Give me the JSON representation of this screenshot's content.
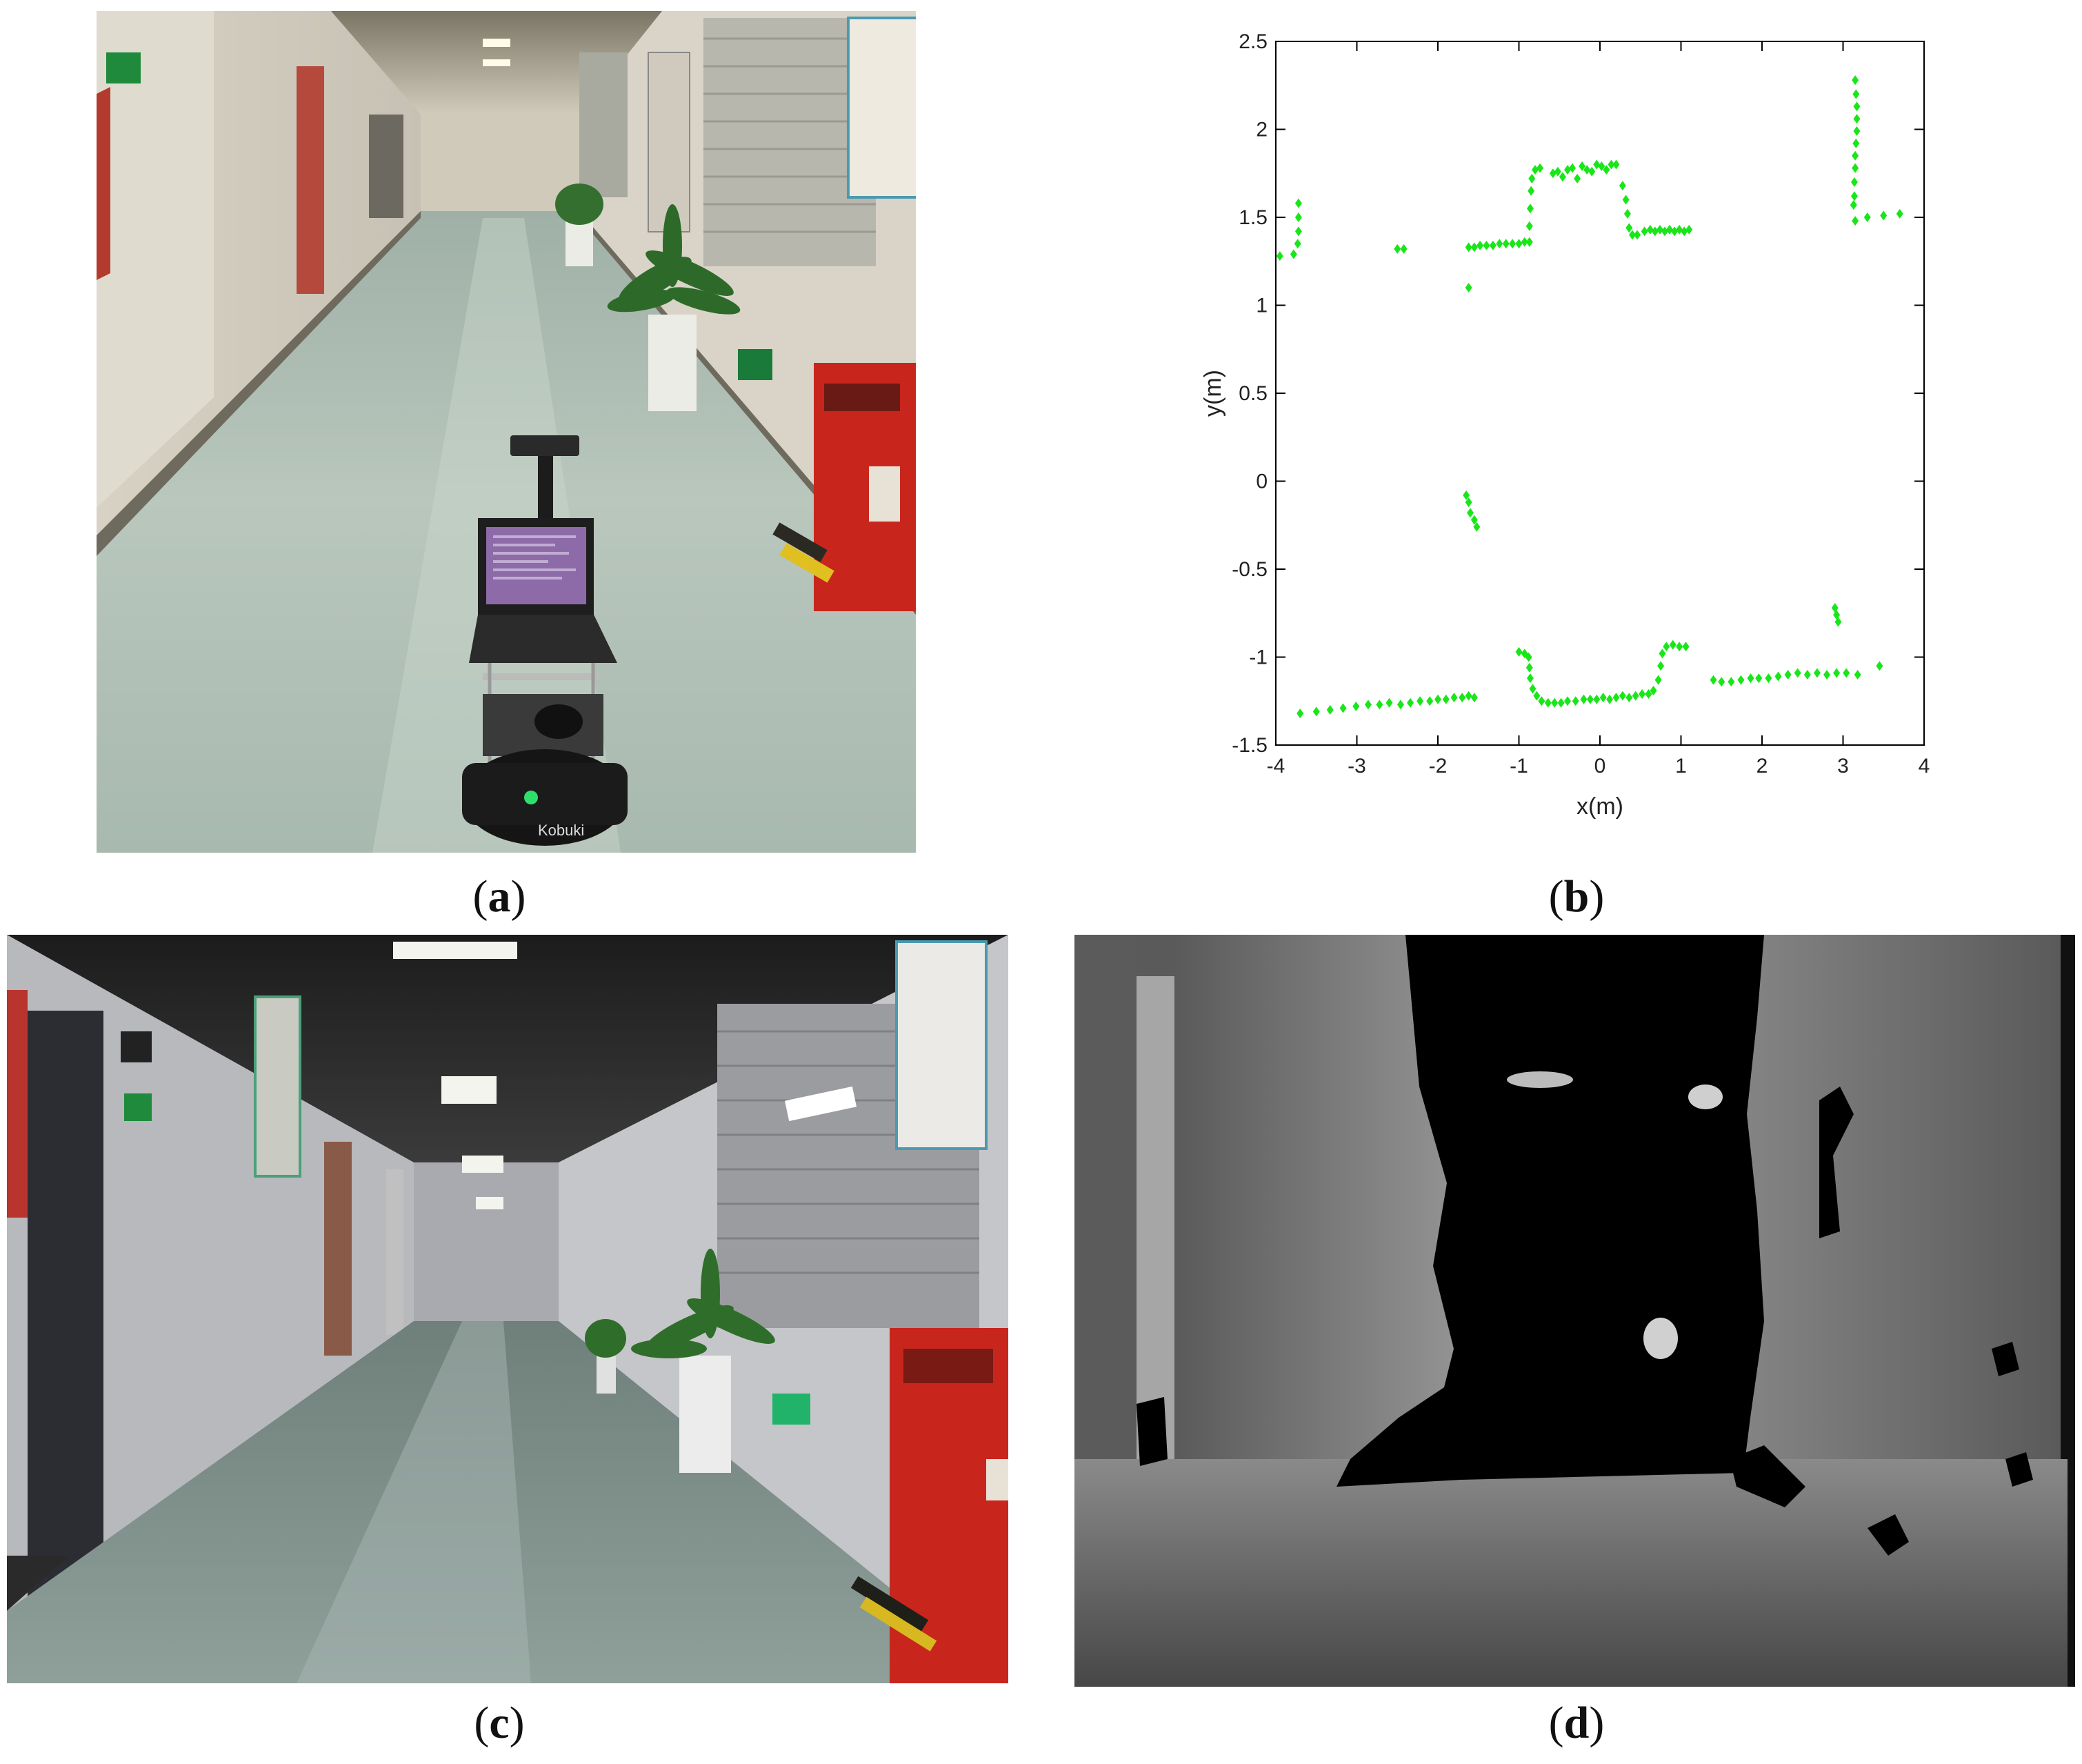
{
  "figure": {
    "panels": [
      {
        "id": "a",
        "caption_open": "(",
        "caption_letter": "a",
        "caption_close": ")"
      },
      {
        "id": "b",
        "caption_open": "(",
        "caption_letter": "b",
        "caption_close": ")"
      },
      {
        "id": "c",
        "caption_open": "(",
        "caption_letter": "c",
        "caption_close": ")"
      },
      {
        "id": "d",
        "caption_open": "(",
        "caption_letter": "d",
        "caption_close": ")"
      }
    ],
    "photo_a_robot_label": "Kobuki"
  },
  "colors": {
    "scan_points": "#19e619",
    "axis": "#000000",
    "depth_far": "#000000",
    "depth_near": "#bdbdbd"
  },
  "chart_data": {
    "type": "scatter",
    "title": "",
    "xlabel": "x(m)",
    "ylabel": "y(m)",
    "xlim": [
      -4,
      4
    ],
    "ylim": [
      -1.5,
      2.5
    ],
    "xticks": [
      "-4",
      "-3",
      "-2",
      "-1",
      "0",
      "1",
      "2",
      "3",
      "4"
    ],
    "yticks": [
      "-1.5",
      "-1",
      "-0.5",
      "0",
      "0.5",
      "1",
      "1.5",
      "2",
      "2.5"
    ],
    "grid": false,
    "marker": "diamond",
    "points": [
      [
        -3.95,
        1.28
      ],
      [
        -3.78,
        1.29
      ],
      [
        -3.73,
        1.35
      ],
      [
        -3.72,
        1.42
      ],
      [
        -3.72,
        1.5
      ],
      [
        -3.72,
        1.58
      ],
      [
        -2.5,
        1.32
      ],
      [
        -2.42,
        1.32
      ],
      [
        -1.62,
        1.1
      ],
      [
        -1.62,
        1.33
      ],
      [
        -1.55,
        1.33
      ],
      [
        -1.48,
        1.34
      ],
      [
        -1.4,
        1.34
      ],
      [
        -1.32,
        1.34
      ],
      [
        -1.24,
        1.35
      ],
      [
        -1.16,
        1.35
      ],
      [
        -1.08,
        1.35
      ],
      [
        -1.0,
        1.35
      ],
      [
        -0.93,
        1.36
      ],
      [
        -0.87,
        1.36
      ],
      [
        -0.87,
        1.45
      ],
      [
        -0.86,
        1.55
      ],
      [
        -0.85,
        1.65
      ],
      [
        -0.84,
        1.72
      ],
      [
        -0.8,
        1.77
      ],
      [
        -0.74,
        1.78
      ],
      [
        -0.58,
        1.75
      ],
      [
        -0.52,
        1.76
      ],
      [
        -0.46,
        1.73
      ],
      [
        -0.4,
        1.77
      ],
      [
        -0.34,
        1.78
      ],
      [
        -0.28,
        1.72
      ],
      [
        -0.22,
        1.79
      ],
      [
        -0.16,
        1.77
      ],
      [
        -0.1,
        1.76
      ],
      [
        -0.04,
        1.8
      ],
      [
        0.02,
        1.79
      ],
      [
        0.08,
        1.77
      ],
      [
        0.14,
        1.8
      ],
      [
        0.2,
        1.8
      ],
      [
        0.28,
        1.68
      ],
      [
        0.32,
        1.6
      ],
      [
        0.34,
        1.52
      ],
      [
        0.36,
        1.44
      ],
      [
        0.4,
        1.4
      ],
      [
        0.46,
        1.4
      ],
      [
        0.55,
        1.42
      ],
      [
        0.62,
        1.43
      ],
      [
        0.68,
        1.42
      ],
      [
        0.74,
        1.43
      ],
      [
        0.8,
        1.42
      ],
      [
        0.86,
        1.43
      ],
      [
        0.92,
        1.42
      ],
      [
        0.98,
        1.43
      ],
      [
        1.04,
        1.42
      ],
      [
        1.1,
        1.43
      ],
      [
        3.15,
        2.28
      ],
      [
        3.16,
        2.2
      ],
      [
        3.17,
        2.13
      ],
      [
        3.17,
        2.06
      ],
      [
        3.17,
        1.99
      ],
      [
        3.16,
        1.92
      ],
      [
        3.15,
        1.85
      ],
      [
        3.15,
        1.78
      ],
      [
        3.14,
        1.7
      ],
      [
        3.14,
        1.62
      ],
      [
        3.13,
        1.57
      ],
      [
        3.15,
        1.48
      ],
      [
        3.3,
        1.5
      ],
      [
        3.5,
        1.51
      ],
      [
        3.7,
        1.52
      ],
      [
        -1.65,
        -0.08
      ],
      [
        -1.62,
        -0.12
      ],
      [
        -1.6,
        -0.18
      ],
      [
        -1.55,
        -0.22
      ],
      [
        -1.52,
        -0.26
      ],
      [
        -3.7,
        -1.32
      ],
      [
        -3.5,
        -1.31
      ],
      [
        -3.33,
        -1.3
      ],
      [
        -3.17,
        -1.29
      ],
      [
        -3.01,
        -1.28
      ],
      [
        -2.86,
        -1.27
      ],
      [
        -2.72,
        -1.27
      ],
      [
        -2.6,
        -1.26
      ],
      [
        -2.46,
        -1.27
      ],
      [
        -2.34,
        -1.26
      ],
      [
        -2.22,
        -1.25
      ],
      [
        -2.1,
        -1.25
      ],
      [
        -2.0,
        -1.24
      ],
      [
        -1.9,
        -1.24
      ],
      [
        -1.8,
        -1.23
      ],
      [
        -1.7,
        -1.23
      ],
      [
        -1.62,
        -1.22
      ],
      [
        -1.55,
        -1.23
      ],
      [
        -1.0,
        -0.97
      ],
      [
        -0.93,
        -0.98
      ],
      [
        -0.88,
        -1.0
      ],
      [
        -0.87,
        -1.06
      ],
      [
        -0.86,
        -1.12
      ],
      [
        -0.83,
        -1.18
      ],
      [
        -0.78,
        -1.22
      ],
      [
        -0.72,
        -1.25
      ],
      [
        -0.64,
        -1.26
      ],
      [
        -0.56,
        -1.26
      ],
      [
        -0.48,
        -1.26
      ],
      [
        -0.4,
        -1.25
      ],
      [
        -0.3,
        -1.25
      ],
      [
        -0.2,
        -1.24
      ],
      [
        -0.12,
        -1.24
      ],
      [
        -0.04,
        -1.24
      ],
      [
        0.04,
        -1.23
      ],
      [
        0.12,
        -1.24
      ],
      [
        0.2,
        -1.23
      ],
      [
        0.28,
        -1.22
      ],
      [
        0.36,
        -1.23
      ],
      [
        0.44,
        -1.22
      ],
      [
        0.52,
        -1.21
      ],
      [
        0.6,
        -1.21
      ],
      [
        0.66,
        -1.19
      ],
      [
        0.72,
        -1.13
      ],
      [
        0.75,
        -1.05
      ],
      [
        0.77,
        -0.98
      ],
      [
        0.82,
        -0.94
      ],
      [
        0.9,
        -0.93
      ],
      [
        0.98,
        -0.94
      ],
      [
        1.06,
        -0.94
      ],
      [
        1.4,
        -1.13
      ],
      [
        1.5,
        -1.14
      ],
      [
        1.62,
        -1.14
      ],
      [
        1.74,
        -1.13
      ],
      [
        1.86,
        -1.12
      ],
      [
        1.96,
        -1.12
      ],
      [
        2.08,
        -1.12
      ],
      [
        2.2,
        -1.11
      ],
      [
        2.32,
        -1.1
      ],
      [
        2.44,
        -1.09
      ],
      [
        2.56,
        -1.1
      ],
      [
        2.68,
        -1.09
      ],
      [
        2.8,
        -1.1
      ],
      [
        2.92,
        -1.09
      ],
      [
        3.04,
        -1.09
      ],
      [
        3.18,
        -1.1
      ],
      [
        3.45,
        -1.05
      ],
      [
        2.9,
        -0.72
      ],
      [
        2.92,
        -0.76
      ],
      [
        2.94,
        -0.8
      ]
    ]
  }
}
